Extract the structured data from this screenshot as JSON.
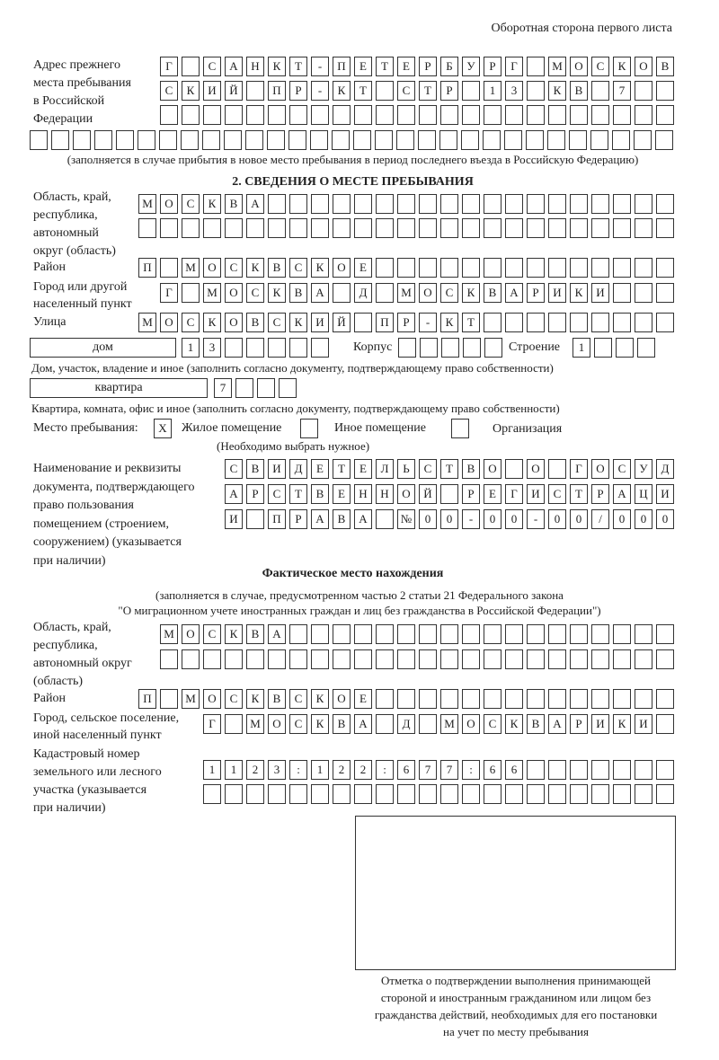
{
  "header": "Оборотная сторона первого листа",
  "prev_address": {
    "label": [
      "Адрес прежнего",
      "места пребывания",
      "в Российской",
      "Федерации"
    ],
    "rows": [
      [
        "Г",
        "",
        "С",
        "А",
        "Н",
        "К",
        "Т",
        "-",
        "П",
        "Е",
        "Т",
        "Е",
        "Р",
        "Б",
        "У",
        "Р",
        "Г",
        "",
        "М",
        "О",
        "С",
        "К",
        "О",
        "В"
      ],
      [
        "С",
        "К",
        "И",
        "Й",
        "",
        "П",
        "Р",
        "-",
        "К",
        "Т",
        "",
        "С",
        "Т",
        "Р",
        "",
        "1",
        "3",
        "",
        "К",
        "В",
        "",
        "7",
        "",
        ""
      ],
      [
        "",
        "",
        "",
        "",
        "",
        "",
        "",
        "",
        "",
        "",
        "",
        "",
        "",
        "",
        "",
        "",
        "",
        "",
        "",
        "",
        "",
        "",
        "",
        ""
      ],
      [
        "",
        "",
        "",
        "",
        "",
        "",
        "",
        "",
        "",
        "",
        "",
        "",
        "",
        "",
        "",
        "",
        "",
        "",
        "",
        "",
        "",
        "",
        "",
        "",
        "",
        "",
        "",
        "",
        "",
        ""
      ]
    ],
    "note": "(заполняется в случае прибытия в новое место пребывания в период последнего въезда в Российскую Федерацию)"
  },
  "section2": {
    "title": "2. СВЕДЕНИЯ О МЕСТЕ ПРЕБЫВАНИЯ",
    "region_label": [
      "Область, край,",
      "республика,",
      "автономный",
      "округ (область)"
    ],
    "region_rows": [
      [
        "М",
        "О",
        "С",
        "К",
        "В",
        "А",
        "",
        "",
        "",
        "",
        "",
        "",
        "",
        "",
        "",
        "",
        "",
        "",
        "",
        "",
        "",
        "",
        "",
        "",
        ""
      ],
      [
        "",
        "",
        "",
        "",
        "",
        "",
        "",
        "",
        "",
        "",
        "",
        "",
        "",
        "",
        "",
        "",
        "",
        "",
        "",
        "",
        "",
        "",
        "",
        "",
        ""
      ]
    ],
    "district_label": "Район",
    "district": [
      "П",
      "",
      "М",
      "О",
      "С",
      "К",
      "В",
      "С",
      "К",
      "О",
      "Е",
      "",
      "",
      "",
      "",
      "",
      "",
      "",
      "",
      "",
      "",
      "",
      "",
      "",
      ""
    ],
    "city_label": [
      "Город или другой",
      "населенный пункт"
    ],
    "city": [
      "Г",
      "",
      "М",
      "О",
      "С",
      "К",
      "В",
      "А",
      "",
      "Д",
      "",
      "М",
      "О",
      "С",
      "К",
      "В",
      "А",
      "Р",
      "И",
      "К",
      "И",
      "",
      "",
      ""
    ],
    "street_label": "Улица",
    "street": [
      "М",
      "О",
      "С",
      "К",
      "О",
      "В",
      "С",
      "К",
      "И",
      "Й",
      "",
      "П",
      "Р",
      "-",
      "К",
      "Т",
      "",
      "",
      "",
      "",
      "",
      "",
      "",
      "",
      ""
    ],
    "house_type": "дом",
    "house": [
      "1",
      "3",
      "",
      "",
      "",
      "",
      ""
    ],
    "korpus_label": "Корпус",
    "korpus": [
      "",
      "",
      "",
      "",
      ""
    ],
    "building_label": "Строение",
    "building": [
      "1",
      "",
      "",
      ""
    ],
    "house_caption": "Дом, участок, владение и иное (заполнить согласно документу, подтверждающему право собственности)",
    "flat_type": "квартира",
    "flat": [
      "7",
      "",
      "",
      ""
    ],
    "flat_caption": "Квартира, комната, офис и иное (заполнить согласно документу, подтверждающему право собственности)",
    "stay_label": "Место пребывания:",
    "stay_options": [
      {
        "mark": "X",
        "label": "Жилое помещение"
      },
      {
        "mark": "",
        "label": "Иное помещение"
      },
      {
        "mark": "",
        "label": "Организация"
      }
    ],
    "stay_note": "(Необходимо выбрать нужное)",
    "doc_label": [
      "Наименование и реквизиты",
      "документа, подтверждающего",
      "право пользования",
      "помещением (строением,",
      "сооружением) (указывается",
      "при наличии)"
    ],
    "doc_rows": [
      [
        "С",
        "В",
        "И",
        "Д",
        "Е",
        "Т",
        "Е",
        "Л",
        "Ь",
        "С",
        "Т",
        "В",
        "О",
        "",
        "О",
        "",
        "Г",
        "О",
        "С",
        "У",
        "Д"
      ],
      [
        "А",
        "Р",
        "С",
        "Т",
        "В",
        "Е",
        "Н",
        "Н",
        "О",
        "Й",
        "",
        "Р",
        "Е",
        "Г",
        "И",
        "С",
        "Т",
        "Р",
        "А",
        "Ц",
        "И"
      ],
      [
        "И",
        "",
        "П",
        "Р",
        "А",
        "В",
        "А",
        "",
        "№",
        "0",
        "0",
        "-",
        "0",
        "0",
        "-",
        "0",
        "0",
        "/",
        "0",
        "0",
        "0"
      ]
    ]
  },
  "actual": {
    "title": "Фактическое место нахождения",
    "note": [
      "(заполняется в случае, предусмотренном частью 2 статьи 21 Федерального закона",
      "\"О миграционном учете иностранных граждан и лиц без гражданства в Российской Федерации\")"
    ],
    "region_label": [
      "Область, край,",
      "республика,",
      "автономный округ",
      "(область)"
    ],
    "region_rows": [
      [
        "М",
        "О",
        "С",
        "К",
        "В",
        "А",
        "",
        "",
        "",
        "",
        "",
        "",
        "",
        "",
        "",
        "",
        "",
        "",
        "",
        "",
        "",
        "",
        "",
        ""
      ],
      [
        "",
        "",
        "",
        "",
        "",
        "",
        "",
        "",
        "",
        "",
        "",
        "",
        "",
        "",
        "",
        "",
        "",
        "",
        "",
        "",
        "",
        "",
        "",
        ""
      ]
    ],
    "district_label": "Район",
    "district": [
      "П",
      "",
      "М",
      "О",
      "С",
      "К",
      "В",
      "С",
      "К",
      "О",
      "Е",
      "",
      "",
      "",
      "",
      "",
      "",
      "",
      "",
      "",
      "",
      "",
      "",
      "",
      ""
    ],
    "city_label": [
      "Город, сельское поселение,",
      "иной населенный пункт"
    ],
    "city": [
      "Г",
      "",
      "М",
      "О",
      "С",
      "К",
      "В",
      "А",
      "",
      "Д",
      "",
      "М",
      "О",
      "С",
      "К",
      "В",
      "А",
      "Р",
      "И",
      "К",
      "И",
      ""
    ],
    "cadastre_label": [
      "Кадастровый номер",
      "земельного или лесного",
      "участка (указывается",
      "при наличии)"
    ],
    "cadastre_rows": [
      [
        "1",
        "1",
        "2",
        "3",
        ":",
        "1",
        "2",
        "2",
        ":",
        "6",
        "7",
        "7",
        ":",
        "6",
        "6",
        "",
        "",
        "",
        "",
        "",
        "",
        ""
      ],
      [
        "",
        "",
        "",
        "",
        "",
        "",
        "",
        "",
        "",
        "",
        "",
        "",
        "",
        "",
        "",
        "",
        "",
        "",
        "",
        "",
        "",
        ""
      ]
    ]
  },
  "stamp_caption": [
    "Отметка о подтверждении выполнения принимающей",
    "стороной и иностранным гражданином или лицом без",
    "гражданства действий, необходимых для его постановки",
    "на учет по месту пребывания"
  ]
}
